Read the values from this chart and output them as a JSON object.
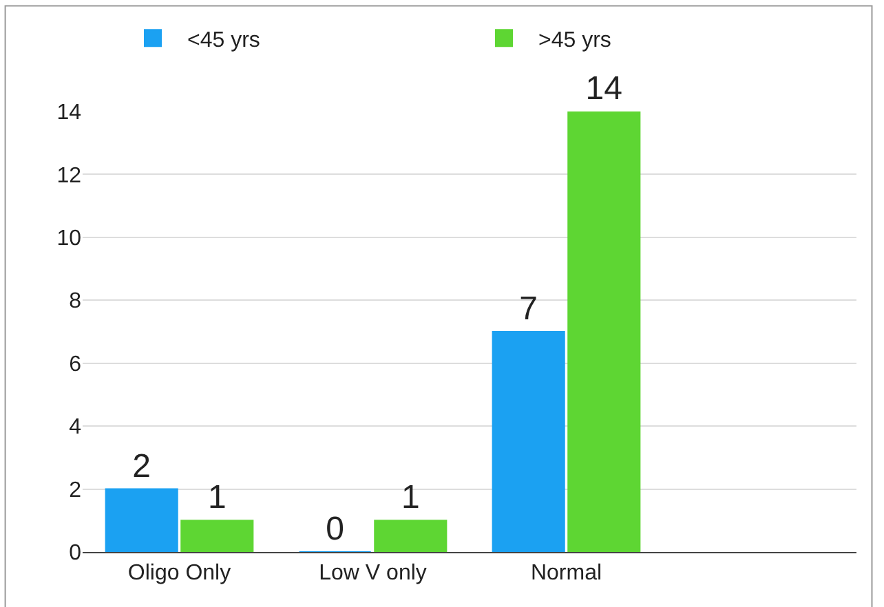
{
  "chart_data": {
    "type": "bar",
    "categories": [
      "Oligo Only",
      "Low V only",
      "Normal",
      null
    ],
    "series": [
      {
        "name": "<45 yrs",
        "color": "#1ba1f2",
        "values": [
          2,
          0,
          7,
          null
        ]
      },
      {
        "name": ">45 yrs",
        "color": "#5ed633",
        "values": [
          1,
          1,
          14,
          null
        ]
      }
    ],
    "ylim": [
      0,
      14
    ],
    "yticks": [
      0,
      2,
      4,
      6,
      8,
      10,
      12,
      14
    ],
    "grid": "y",
    "legend": "top",
    "data_labels": true
  }
}
